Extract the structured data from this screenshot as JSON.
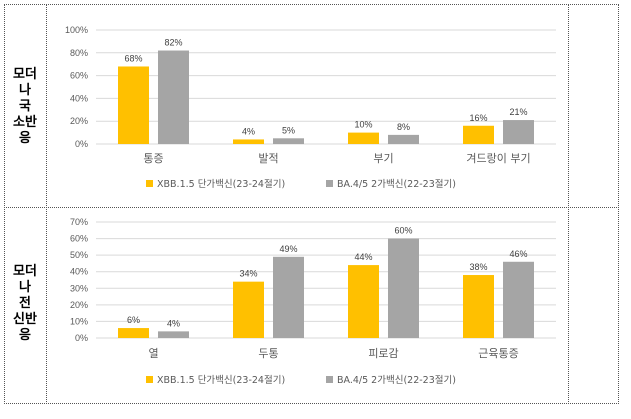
{
  "rows": [
    {
      "label_lines": [
        "모더",
        "나",
        "국",
        "소반",
        "응"
      ]
    },
    {
      "label_lines": [
        "모더",
        "나",
        "전",
        "신반",
        "응"
      ]
    }
  ],
  "colors": {
    "series1": "#FFC000",
    "series2": "#A5A5A5",
    "grid": "#D9D9D9"
  },
  "chart_data": [
    {
      "type": "bar",
      "categories": [
        "통증",
        "발적",
        "부기",
        "겨드랑이 부기"
      ],
      "series": [
        {
          "name": "XBB.1.5 단가백신(23-24절기)",
          "values": [
            68,
            4,
            10,
            16
          ]
        },
        {
          "name": "BA.4/5 2가백신(22-23절기)",
          "values": [
            82,
            5,
            8,
            21
          ]
        }
      ],
      "data_labels": [
        [
          "68%",
          "4%",
          "10%",
          "16%"
        ],
        [
          "82%",
          "5%",
          "8%",
          "21%"
        ]
      ],
      "ylim": [
        0,
        100
      ],
      "yticks": [
        0,
        20,
        40,
        60,
        80,
        100
      ],
      "ytick_labels": [
        "0%",
        "20%",
        "40%",
        "60%",
        "80%",
        "100%"
      ],
      "grid": true,
      "legend": "bottom"
    },
    {
      "type": "bar",
      "categories": [
        "열",
        "두통",
        "피로감",
        "근육통증"
      ],
      "series": [
        {
          "name": "XBB.1.5 단가백신(23-24절기)",
          "values": [
            6,
            34,
            44,
            38
          ]
        },
        {
          "name": "BA.4/5 2가백신(22-23절기)",
          "values": [
            4,
            49,
            60,
            46
          ]
        }
      ],
      "data_labels": [
        [
          "6%",
          "34%",
          "44%",
          "38%"
        ],
        [
          "4%",
          "49%",
          "60%",
          "46%"
        ]
      ],
      "ylim": [
        0,
        70
      ],
      "yticks": [
        0,
        10,
        20,
        30,
        40,
        50,
        60,
        70
      ],
      "ytick_labels": [
        "0%",
        "10%",
        "20%",
        "30%",
        "40%",
        "50%",
        "60%",
        "70%"
      ],
      "grid": true,
      "legend": "bottom"
    }
  ]
}
